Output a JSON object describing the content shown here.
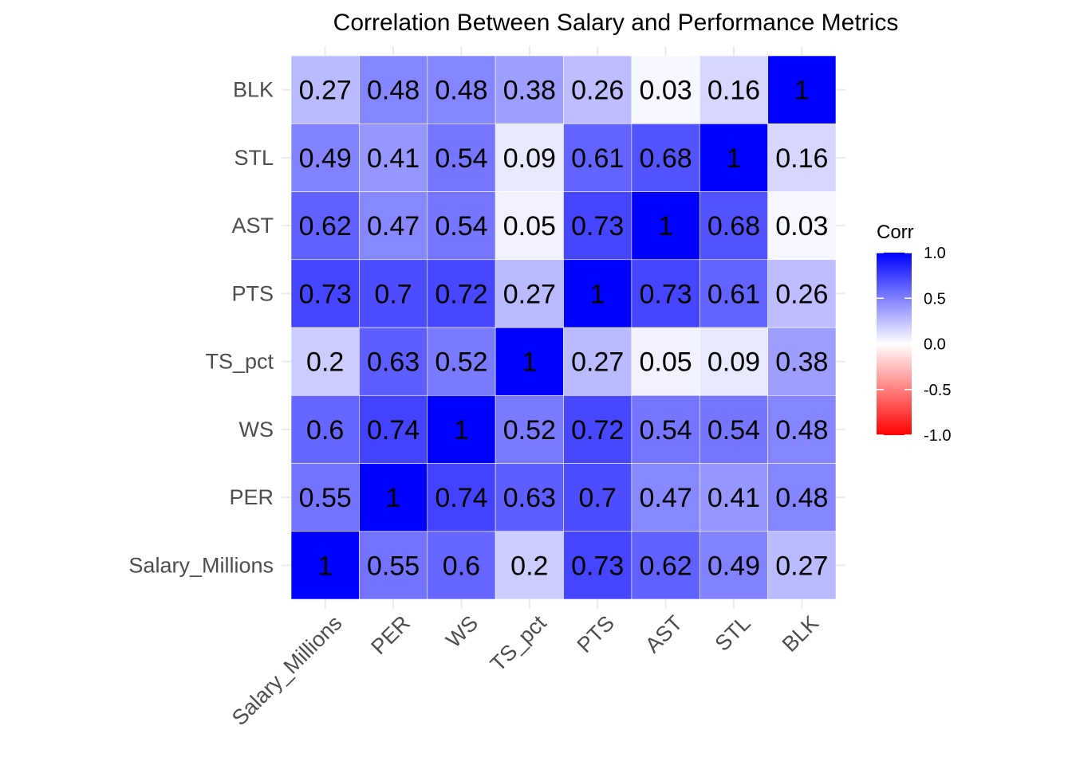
{
  "chart_data": {
    "type": "heatmap",
    "title": "Correlation Between Salary and Performance Metrics",
    "xlabel": "",
    "ylabel": "",
    "variables": [
      "Salary_Millions",
      "PER",
      "WS",
      "TS_pct",
      "PTS",
      "AST",
      "STL",
      "BLK"
    ],
    "matrix": [
      [
        1,
        0.55,
        0.6,
        0.2,
        0.73,
        0.62,
        0.49,
        0.27
      ],
      [
        0.55,
        1,
        0.74,
        0.63,
        0.7,
        0.47,
        0.41,
        0.48
      ],
      [
        0.6,
        0.74,
        1,
        0.52,
        0.72,
        0.54,
        0.54,
        0.48
      ],
      [
        0.2,
        0.63,
        0.52,
        1,
        0.27,
        0.05,
        0.09,
        0.38
      ],
      [
        0.73,
        0.7,
        0.72,
        0.27,
        1,
        0.73,
        0.61,
        0.26
      ],
      [
        0.62,
        0.47,
        0.54,
        0.05,
        0.73,
        1,
        0.68,
        0.03
      ],
      [
        0.49,
        0.41,
        0.54,
        0.09,
        0.61,
        0.68,
        1,
        0.16
      ],
      [
        0.27,
        0.48,
        0.48,
        0.38,
        0.26,
        0.03,
        0.16,
        1
      ]
    ],
    "legend": {
      "title": "Corr",
      "ticks": [
        "1.0",
        "0.5",
        "0.0",
        "-0.5",
        "-1.0"
      ],
      "limits": [
        -1,
        1
      ],
      "placement": "right"
    },
    "colors": {
      "low": "#ff0000",
      "mid": "#ffffff",
      "high": "#0000ff",
      "cell_border": "#ffffff",
      "grid": "#ebebeb",
      "axis_text": "#4d4d4d",
      "label_text": "#000000"
    },
    "grid": true
  }
}
